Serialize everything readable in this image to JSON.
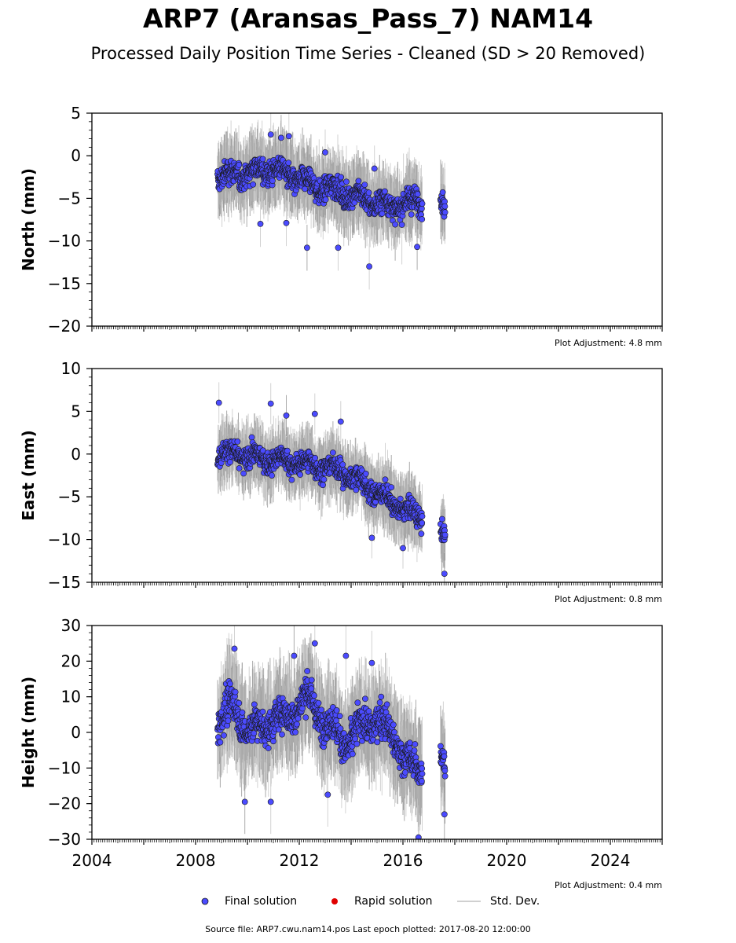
{
  "title": "ARP7 (Aransas_Pass_7) NAM14",
  "subtitle": "Processed Daily Position Time Series - Cleaned (SD > 20 Removed)",
  "colors": {
    "final": "#4b4bff",
    "final_edge": "#1a1a1a",
    "rapid": "#e00000",
    "stddev": "#c0c0c0"
  },
  "legend": {
    "final": "Final solution",
    "rapid": "Rapid solution",
    "stddev": "Std. Dev."
  },
  "footer": "Source file: ARP7.cwu.nam14.pos  Last epoch plotted: 2017-08-20 12:00:00",
  "chart_data": [
    {
      "type": "scatter",
      "id": "north",
      "ylabel": "North (mm)",
      "adjustment_label": "Plot Adjustment: 4.8 mm",
      "xlim": [
        2004,
        2026
      ],
      "ylim": [
        -20,
        5
      ],
      "yticks": [
        -20,
        -15,
        -10,
        -5,
        0,
        5
      ],
      "ytick_labels": [
        "−20",
        "−15",
        "−10",
        "−5",
        "0",
        "5"
      ],
      "series": [
        {
          "name": "Final solution",
          "description": "Daily north component with std. dev. bars",
          "x_range": [
            2008.85,
            2017.63
          ],
          "gap": [
            2016.75,
            2017.45
          ],
          "trend": [
            [
              2008.85,
              -2.5
            ],
            [
              2011.0,
              -1.5
            ],
            [
              2012.5,
              -3.5
            ],
            [
              2014.0,
              -4.5
            ],
            [
              2015.5,
              -6.0
            ],
            [
              2016.7,
              -5.2
            ],
            [
              2017.63,
              -5.8
            ]
          ],
          "scatter": 1.8,
          "outliers": [
            [
              2010.9,
              2.5
            ],
            [
              2011.6,
              2.3
            ],
            [
              2011.3,
              2.1
            ],
            [
              2013.0,
              0.4
            ],
            [
              2014.9,
              -1.5
            ],
            [
              2012.3,
              -10.8
            ],
            [
              2013.5,
              -10.8
            ],
            [
              2014.7,
              -13.0
            ],
            [
              2016.55,
              -10.7
            ],
            [
              2010.5,
              -8.0
            ],
            [
              2011.5,
              -7.9
            ]
          ]
        }
      ]
    },
    {
      "type": "scatter",
      "id": "east",
      "ylabel": "East (mm)",
      "adjustment_label": "Plot Adjustment: 0.8 mm",
      "xlim": [
        2004,
        2026
      ],
      "ylim": [
        -15,
        10
      ],
      "yticks": [
        -15,
        -10,
        -5,
        0,
        5,
        10
      ],
      "ytick_labels": [
        "−15",
        "−10",
        "−5",
        "0",
        "5",
        "10"
      ],
      "series": [
        {
          "name": "Final solution",
          "description": "Daily east component with std. dev. bars",
          "x_range": [
            2008.85,
            2017.63
          ],
          "gap": [
            2016.75,
            2017.45
          ],
          "trend": [
            [
              2008.85,
              0.2
            ],
            [
              2010.5,
              -0.5
            ],
            [
              2012.0,
              -1.0
            ],
            [
              2013.5,
              -1.8
            ],
            [
              2014.5,
              -3.5
            ],
            [
              2015.5,
              -5.5
            ],
            [
              2016.7,
              -7.5
            ],
            [
              2017.63,
              -9.5
            ]
          ],
          "scatter": 1.6,
          "outliers": [
            [
              2008.9,
              6.0
            ],
            [
              2010.9,
              5.9
            ],
            [
              2011.5,
              4.5
            ],
            [
              2012.6,
              4.7
            ],
            [
              2013.6,
              3.8
            ],
            [
              2017.6,
              -14.0
            ],
            [
              2014.8,
              -9.8
            ],
            [
              2016.0,
              -11.0
            ]
          ]
        }
      ]
    },
    {
      "type": "scatter",
      "id": "height",
      "ylabel": "Height (mm)",
      "adjustment_label": "Plot Adjustment: 0.4 mm",
      "xlim": [
        2004,
        2026
      ],
      "ylim": [
        -30,
        30
      ],
      "yticks": [
        -30,
        -20,
        -10,
        0,
        10,
        20,
        30
      ],
      "ytick_labels": [
        "−30",
        "−20",
        "−10",
        "0",
        "10",
        "20",
        "30"
      ],
      "xticks": [
        2004,
        2008,
        2012,
        2016,
        2020,
        2024
      ],
      "xtick_labels": [
        "2004",
        "2008",
        "2012",
        "2016",
        "2020",
        "2024"
      ],
      "series": [
        {
          "name": "Final solution",
          "description": "Daily height component with std. dev. bars",
          "x_range": [
            2008.85,
            2017.63
          ],
          "gap": [
            2016.75,
            2017.45
          ],
          "trend": [
            [
              2008.85,
              3.0
            ],
            [
              2009.5,
              8.0
            ],
            [
              2010.0,
              0.0
            ],
            [
              2010.8,
              3.0
            ],
            [
              2011.5,
              4.0
            ],
            [
              2012.3,
              10.0
            ],
            [
              2013.0,
              3.0
            ],
            [
              2013.8,
              -3.0
            ],
            [
              2014.5,
              2.0
            ],
            [
              2015.0,
              4.0
            ],
            [
              2015.7,
              -2.0
            ],
            [
              2016.3,
              -10.0
            ],
            [
              2016.7,
              -10.0
            ],
            [
              2017.63,
              -8.0
            ]
          ],
          "scatter": 6.0,
          "outliers": [
            [
              2009.5,
              23.5
            ],
            [
              2012.6,
              25.0
            ],
            [
              2011.8,
              21.5
            ],
            [
              2013.8,
              21.5
            ],
            [
              2014.8,
              19.5
            ],
            [
              2009.9,
              -19.5
            ],
            [
              2010.9,
              -19.5
            ],
            [
              2016.6,
              -29.5
            ],
            [
              2017.6,
              -23.0
            ],
            [
              2013.1,
              -17.5
            ]
          ]
        }
      ]
    }
  ]
}
